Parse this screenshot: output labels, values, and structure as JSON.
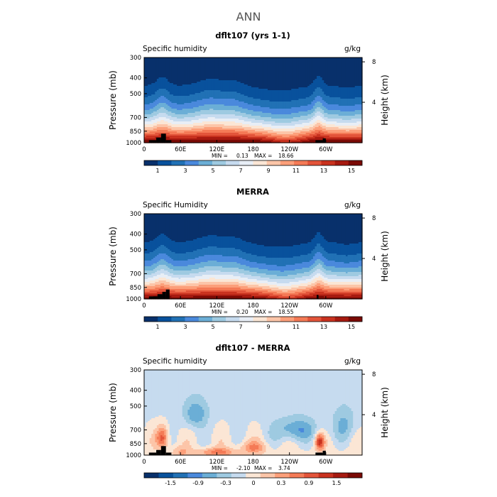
{
  "figure": {
    "title": "ANN"
  },
  "chart_data": [
    {
      "type": "heatmap",
      "title": "dflt107 (yrs 1-1)",
      "variable_label": "Specific humidity",
      "units": "g/kg",
      "xticklabels": [
        "0",
        "60E",
        "120E",
        "180",
        "120W",
        "60W"
      ],
      "yticks": [
        300,
        400,
        500,
        700,
        850,
        1000
      ],
      "ylabel": "Pressure (mb)",
      "height_ticks_km": [
        4,
        8
      ],
      "right_ylabel": "Height (km)",
      "min_label": "MIN =",
      "min_value": "0.13",
      "max_label": "MAX =",
      "max_value": "18.66",
      "colorbar": {
        "levels": [
          "1",
          "3",
          "5",
          "7",
          "9",
          "11",
          "13",
          "15"
        ],
        "colors": [
          "#08306b",
          "#08519c",
          "#2171b5",
          "#4a89dc",
          "#6baed6",
          "#9ecae1",
          "#c6dbef",
          "#e8eef6",
          "#fbe6d5",
          "#fcc5a8",
          "#fc9f7a",
          "#f47a56",
          "#e3543a",
          "#c9321f",
          "#a61a10",
          "#7a0a05"
        ]
      },
      "field": {
        "kind": "humidity",
        "surface_q": 16.5,
        "topo_blocks": [
          {
            "lon_start": 8,
            "lon_end": 20,
            "p_top": 965
          },
          {
            "lon_start": 20,
            "lon_end": 28,
            "p_top": 930
          },
          {
            "lon_start": 28,
            "lon_end": 36,
            "p_top": 880
          },
          {
            "lon_start": 36,
            "lon_end": 45,
            "p_top": 965
          },
          {
            "lon_start": 283,
            "lon_end": 295,
            "p_top": 965
          },
          {
            "lon_start": 295,
            "lon_end": 300,
            "p_top": 940
          }
        ]
      }
    },
    {
      "type": "heatmap",
      "title": "MERRA",
      "variable_label": "Specific Humidity",
      "units": "g/kg",
      "xticklabels": [
        "0",
        "60E",
        "120E",
        "180",
        "120W",
        "60W"
      ],
      "yticks": [
        300,
        400,
        500,
        700,
        850,
        1000
      ],
      "ylabel": "Pressure (mb)",
      "height_ticks_km": [
        4,
        8
      ],
      "right_ylabel": "Height (km)",
      "min_label": "MIN =",
      "min_value": "0.20",
      "max_label": "MAX =",
      "max_value": "18.55",
      "colorbar": {
        "levels": [
          "1",
          "3",
          "5",
          "7",
          "9",
          "11",
          "13",
          "15"
        ],
        "colors": [
          "#08306b",
          "#08519c",
          "#2171b5",
          "#4a89dc",
          "#6baed6",
          "#9ecae1",
          "#c6dbef",
          "#e8eef6",
          "#fbe6d5",
          "#fcc5a8",
          "#fc9f7a",
          "#f47a56",
          "#e3543a",
          "#c9321f",
          "#a61a10",
          "#7a0a05"
        ]
      },
      "field": {
        "kind": "humidity",
        "surface_q": 16.0,
        "topo_blocks": [
          {
            "lon_start": 8,
            "lon_end": 22,
            "p_top": 965
          },
          {
            "lon_start": 22,
            "lon_end": 30,
            "p_top": 935
          },
          {
            "lon_start": 30,
            "lon_end": 36,
            "p_top": 905
          },
          {
            "lon_start": 36,
            "lon_end": 42,
            "p_top": 875
          },
          {
            "lon_start": 285,
            "lon_end": 288,
            "p_top": 945
          }
        ]
      }
    },
    {
      "type": "heatmap",
      "title": "dflt107 - MERRA",
      "variable_label": "Specific humidity",
      "units": "g/kg",
      "xticklabels": [
        "0",
        "60E",
        "120E",
        "180",
        "120W",
        "60W"
      ],
      "yticks": [
        300,
        400,
        500,
        700,
        850,
        1000
      ],
      "ylabel": "Pressure (mb)",
      "height_ticks_km": [
        4,
        8
      ],
      "right_ylabel": "Height (km)",
      "min_label": "MIN =",
      "min_value": "-2.10",
      "max_label": "MAX =",
      "max_value": "3.74",
      "colorbar": {
        "levels": [
          "-1.5",
          "-0.9",
          "-0.3",
          "0",
          "0.3",
          "0.9",
          "1.5"
        ],
        "colors": [
          "#08306b",
          "#08519c",
          "#2171b5",
          "#4a89dc",
          "#6baed6",
          "#9ecae1",
          "#c6dbef",
          "#fbe6d5",
          "#fcc5a8",
          "#fc9f7a",
          "#f47a56",
          "#e3543a",
          "#c9321f",
          "#a61a10",
          "#7a0a05"
        ]
      },
      "field": {
        "kind": "difference",
        "topo_blocks": [
          {
            "lon_start": 8,
            "lon_end": 20,
            "p_top": 965
          },
          {
            "lon_start": 20,
            "lon_end": 28,
            "p_top": 930
          },
          {
            "lon_start": 28,
            "lon_end": 36,
            "p_top": 880
          },
          {
            "lon_start": 36,
            "lon_end": 45,
            "p_top": 965
          },
          {
            "lon_start": 283,
            "lon_end": 295,
            "p_top": 965
          },
          {
            "lon_start": 295,
            "lon_end": 300,
            "p_top": 940
          }
        ]
      }
    }
  ]
}
